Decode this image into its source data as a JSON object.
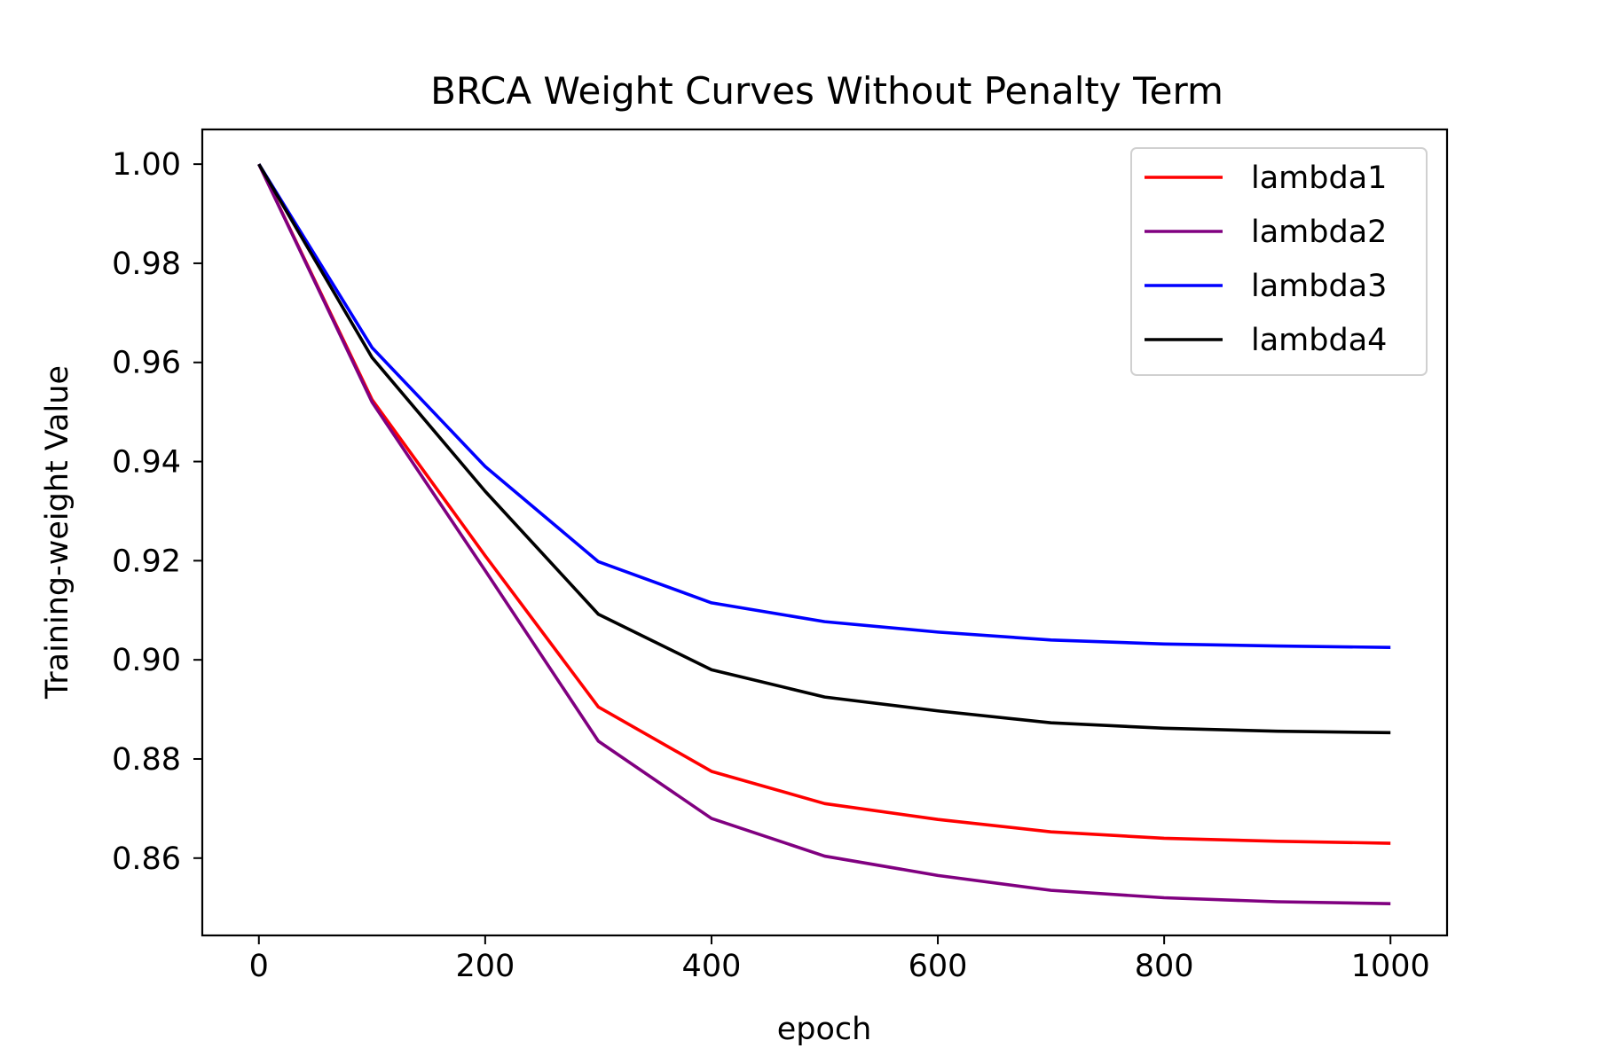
{
  "chart_data": {
    "type": "line",
    "title": "BRCA Weight Curves Without Penalty Term",
    "xlabel": "epoch",
    "ylabel": "Training-weight Value",
    "x": [
      0,
      100,
      200,
      300,
      400,
      500,
      600,
      700,
      800,
      900,
      1000
    ],
    "xlim": [
      -50,
      1050
    ],
    "ylim": [
      0.8444,
      1.007
    ],
    "xticks": [
      0,
      200,
      400,
      600,
      800,
      1000
    ],
    "xtick_labels": [
      "0",
      "200",
      "400",
      "600",
      "800",
      "1000"
    ],
    "yticks": [
      0.86,
      0.88,
      0.9,
      0.92,
      0.94,
      0.96,
      0.98,
      1.0
    ],
    "ytick_labels": [
      "0.86",
      "0.88",
      "0.90",
      "0.92",
      "0.94",
      "0.96",
      "0.98",
      "1.00"
    ],
    "grid": false,
    "legend_position": "top-right",
    "series": [
      {
        "name": "lambda1",
        "color": "#ff0000",
        "values": [
          1.0,
          0.9525,
          0.921,
          0.8905,
          0.8775,
          0.871,
          0.8678,
          0.8653,
          0.864,
          0.8634,
          0.863
        ]
      },
      {
        "name": "lambda2",
        "color": "#800080",
        "values": [
          1.0,
          0.952,
          0.918,
          0.8836,
          0.868,
          0.8604,
          0.8565,
          0.8535,
          0.852,
          0.8512,
          0.8508
        ]
      },
      {
        "name": "lambda3",
        "color": "#0000ff",
        "values": [
          1.0,
          0.963,
          0.939,
          0.9198,
          0.9115,
          0.9077,
          0.9056,
          0.904,
          0.9032,
          0.9028,
          0.9025
        ]
      },
      {
        "name": "lambda4",
        "color": "#000000",
        "values": [
          1.0,
          0.961,
          0.934,
          0.9092,
          0.898,
          0.8925,
          0.8897,
          0.8873,
          0.8862,
          0.8856,
          0.8853
        ]
      }
    ]
  }
}
